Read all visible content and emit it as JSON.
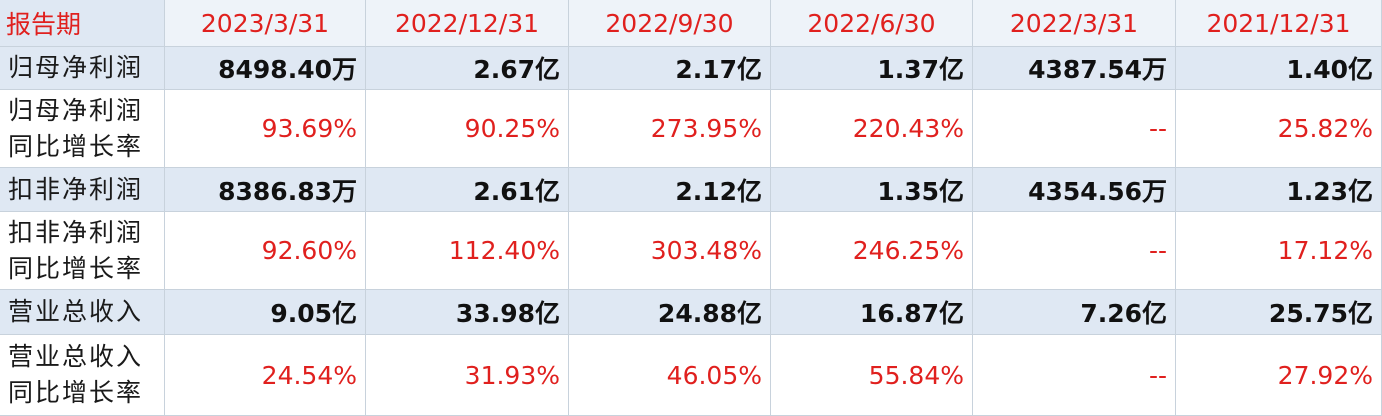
{
  "table": {
    "header": {
      "label": "报告期",
      "columns": [
        "2023/3/31",
        "2022/12/31",
        "2022/9/30",
        "2022/6/30",
        "2022/3/31",
        "2021/12/31"
      ]
    },
    "rows": [
      {
        "label": [
          "归母净利润"
        ],
        "kind": "amount",
        "values": [
          "8498.40万",
          "2.67亿",
          "2.17亿",
          "1.37亿",
          "4387.54万",
          "1.40亿"
        ]
      },
      {
        "label": [
          "归母净利润",
          "同比增长率"
        ],
        "kind": "rate",
        "values": [
          "93.69%",
          "90.25%",
          "273.95%",
          "220.43%",
          "--",
          "25.82%"
        ]
      },
      {
        "label": [
          "扣非净利润"
        ],
        "kind": "amount",
        "values": [
          "8386.83万",
          "2.61亿",
          "2.12亿",
          "1.35亿",
          "4354.56万",
          "1.23亿"
        ]
      },
      {
        "label": [
          "扣非净利润",
          "同比增长率"
        ],
        "kind": "rate",
        "values": [
          "92.60%",
          "112.40%",
          "303.48%",
          "246.25%",
          "--",
          "17.12%"
        ]
      },
      {
        "label": [
          "营业总收入"
        ],
        "kind": "amount",
        "values": [
          "9.05亿",
          "33.98亿",
          "24.88亿",
          "16.87亿",
          "7.26亿",
          "25.75亿"
        ]
      },
      {
        "label": [
          "营业总收入",
          "同比增长率"
        ],
        "kind": "rate",
        "values": [
          "24.54%",
          "31.93%",
          "46.05%",
          "55.84%",
          "--",
          "27.92%"
        ]
      }
    ]
  }
}
